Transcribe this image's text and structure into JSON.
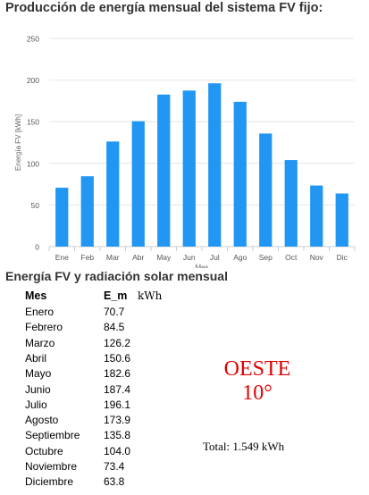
{
  "title": "Producción de energía mensual del sistema FV fijo:",
  "chart_data": {
    "type": "bar",
    "ylabel": "Energía FV [kWh]",
    "xlabel": "Mes",
    "ylim": [
      0,
      250
    ],
    "yticks": [
      0,
      50,
      100,
      150,
      200,
      250
    ],
    "grid": true,
    "bar_color": "#2196f3",
    "categories": [
      "Ene",
      "Feb",
      "Mar",
      "Abr",
      "May",
      "Jun",
      "Jul",
      "Ago",
      "Sep",
      "Oct",
      "Nov",
      "Dic"
    ],
    "values": [
      70.7,
      84.5,
      126.2,
      150.6,
      182.6,
      187.4,
      196.1,
      173.9,
      135.8,
      104.0,
      73.4,
      63.8
    ]
  },
  "table": {
    "title": "Energía FV y radiación solar mensual",
    "col_month": "Mes",
    "col_value": "E_m",
    "unit": "kWh",
    "rows": [
      {
        "month": "Enero",
        "value": "70.7"
      },
      {
        "month": "Febrero",
        "value": "84.5"
      },
      {
        "month": "Marzo",
        "value": "126.2"
      },
      {
        "month": "Abril",
        "value": "150.6"
      },
      {
        "month": "Mayo",
        "value": "182.6"
      },
      {
        "month": "Junio",
        "value": "187.4"
      },
      {
        "month": "Julio",
        "value": "196.1"
      },
      {
        "month": "Agosto",
        "value": "173.9"
      },
      {
        "month": "Septiembre",
        "value": "135.8"
      },
      {
        "month": "Octubre",
        "value": "104.0"
      },
      {
        "month": "Noviembre",
        "value": "73.4"
      },
      {
        "month": "Diciembre",
        "value": "63.8"
      }
    ]
  },
  "annotation": {
    "orientation": "OESTE",
    "angle": "10°",
    "total": "Total: 1.549 kWh",
    "color": "#e00000"
  }
}
